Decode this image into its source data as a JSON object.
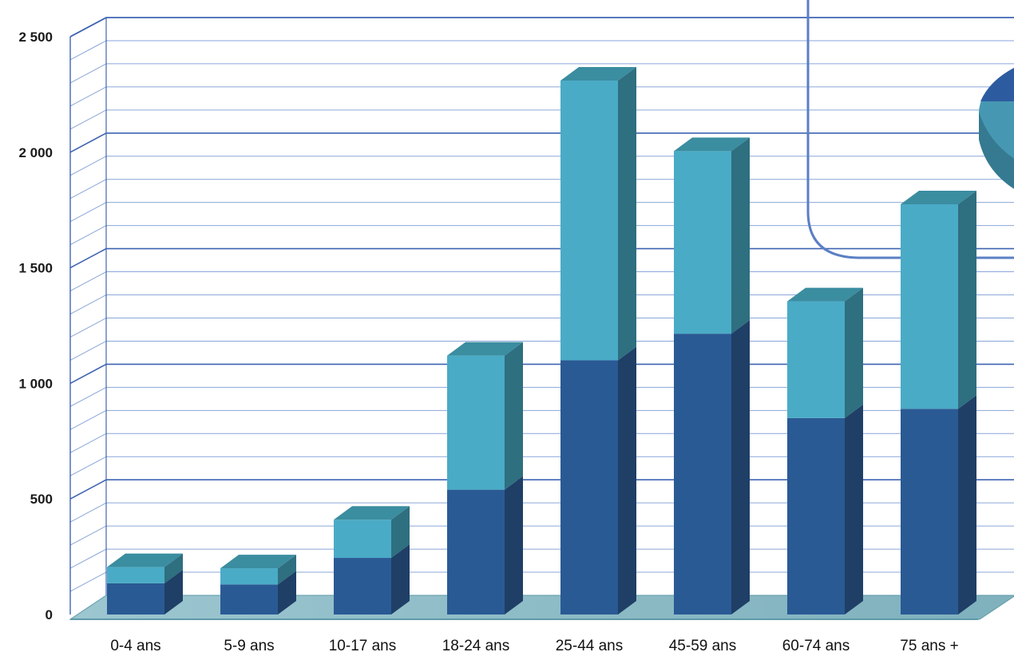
{
  "chart_data": {
    "type": "bar",
    "stacked": true,
    "three_d": true,
    "categories": [
      "0-4 ans",
      "5-9 ans",
      "10-17 ans",
      "18-24 ans",
      "25-44 ans",
      "45-59 ans",
      "60-74 ans",
      "75 ans +"
    ],
    "series": [
      {
        "values": [
          135,
          130,
          245,
          540,
          1100,
          1215,
          850,
          890
        ]
      },
      {
        "values": [
          70,
          70,
          165,
          580,
          1210,
          790,
          505,
          885
        ]
      }
    ],
    "y_ticks": [
      "0",
      "500",
      "1 000",
      "1 500",
      "2 000",
      "2 500"
    ],
    "ylim": [
      0,
      2500
    ],
    "grid": true,
    "legend": "none",
    "colors": {
      "series_front": [
        "#2a5a94",
        "#4aabc6"
      ],
      "series_side": [
        "#1f3f66",
        "#2e6f80"
      ],
      "series_top": [
        "#35648f",
        "#3b8da0"
      ],
      "grid_major": "#3f64b2",
      "grid_minor": "#8aa6d8",
      "floor": "#8fbcc7",
      "floor_edge": "#5e9aa8",
      "overlay_line": "#5b7fc4",
      "pie_dark": "#2d5ba0",
      "pie_light": "#4698b2",
      "pie_side": "#357a90"
    }
  }
}
